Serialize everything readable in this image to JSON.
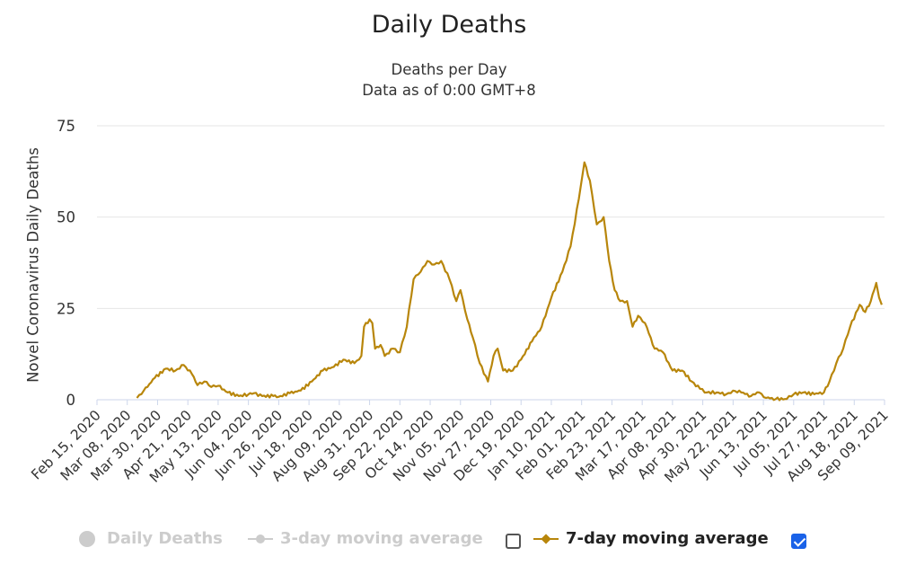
{
  "chart_data": {
    "type": "line",
    "title": "Daily Deaths",
    "subtitle": [
      "Deaths per Day",
      "Data as of 0:00 GMT+8"
    ],
    "ylabel": "Novel Coronavirus Daily Deaths",
    "xlabel": "",
    "ylim": [
      0,
      75
    ],
    "yticks": [
      0,
      25,
      50,
      75
    ],
    "xticks": [
      "Feb 15, 2020",
      "Mar 08, 2020",
      "Mar 30, 2020",
      "Apr 21, 2020",
      "May 13, 2020",
      "Jun 04, 2020",
      "Jun 26, 2020",
      "Jul 18, 2020",
      "Aug 09, 2020",
      "Aug 31, 2020",
      "Sep 22, 2020",
      "Oct 14, 2020",
      "Nov 05, 2020",
      "Nov 27, 2020",
      "Dec 19, 2020",
      "Jan 10, 2021",
      "Feb 01, 2021",
      "Feb 23, 2021",
      "Mar 17, 2021",
      "Apr 08, 2021",
      "Apr 30, 2021",
      "May 22, 2021",
      "Jun 13, 2021",
      "Jul 05, 2021",
      "Jul 27, 2021",
      "Aug 18, 2021",
      "Sep 09, 2021"
    ],
    "grid": true,
    "legend_position": "bottom",
    "series": [
      {
        "name": "7-day moving average",
        "color": "#b8860b",
        "visible": true,
        "points": [
          [
            "2020-03-15",
            0.5
          ],
          [
            "2020-03-20",
            2.5
          ],
          [
            "2020-03-28",
            6
          ],
          [
            "2020-04-05",
            8.5
          ],
          [
            "2020-04-12",
            8
          ],
          [
            "2020-04-18",
            9.5
          ],
          [
            "2020-04-24",
            7
          ],
          [
            "2020-04-28",
            4
          ],
          [
            "2020-05-03",
            5
          ],
          [
            "2020-05-08",
            3.5
          ],
          [
            "2020-05-13",
            3.8
          ],
          [
            "2020-05-20",
            2
          ],
          [
            "2020-05-28",
            1
          ],
          [
            "2020-06-04",
            1.5
          ],
          [
            "2020-06-08",
            1.8
          ],
          [
            "2020-06-14",
            1
          ],
          [
            "2020-06-22",
            1
          ],
          [
            "2020-06-26",
            0.8
          ],
          [
            "2020-07-04",
            1.8
          ],
          [
            "2020-07-12",
            2.5
          ],
          [
            "2020-07-20",
            5
          ],
          [
            "2020-07-28",
            8
          ],
          [
            "2020-08-05",
            9
          ],
          [
            "2020-08-12",
            11
          ],
          [
            "2020-08-20",
            10
          ],
          [
            "2020-08-25",
            12
          ],
          [
            "2020-08-27",
            20
          ],
          [
            "2020-08-31",
            22
          ],
          [
            "2020-09-02",
            21
          ],
          [
            "2020-09-04",
            14
          ],
          [
            "2020-09-08",
            15
          ],
          [
            "2020-09-11",
            12
          ],
          [
            "2020-09-17",
            14
          ],
          [
            "2020-09-22",
            13
          ],
          [
            "2020-09-27",
            20
          ],
          [
            "2020-10-02",
            33
          ],
          [
            "2020-10-07",
            35
          ],
          [
            "2020-10-12",
            38
          ],
          [
            "2020-10-17",
            37
          ],
          [
            "2020-10-22",
            38
          ],
          [
            "2020-10-28",
            33
          ],
          [
            "2020-11-02",
            27
          ],
          [
            "2020-11-05",
            30
          ],
          [
            "2020-11-10",
            22
          ],
          [
            "2020-11-14",
            17
          ],
          [
            "2020-11-19",
            10
          ],
          [
            "2020-11-25",
            5
          ],
          [
            "2020-11-29",
            12
          ],
          [
            "2020-12-02",
            14
          ],
          [
            "2020-12-06",
            8
          ],
          [
            "2020-12-13",
            8
          ],
          [
            "2020-12-19",
            11
          ],
          [
            "2020-12-27",
            16
          ],
          [
            "2021-01-03",
            20
          ],
          [
            "2021-01-10",
            28
          ],
          [
            "2021-01-18",
            35
          ],
          [
            "2021-01-24",
            42
          ],
          [
            "2021-01-30",
            55
          ],
          [
            "2021-02-03",
            65
          ],
          [
            "2021-02-07",
            60
          ],
          [
            "2021-02-12",
            48
          ],
          [
            "2021-02-17",
            50
          ],
          [
            "2021-02-21",
            38
          ],
          [
            "2021-02-25",
            30
          ],
          [
            "2021-03-01",
            27
          ],
          [
            "2021-03-06",
            27
          ],
          [
            "2021-03-10",
            20
          ],
          [
            "2021-03-14",
            23
          ],
          [
            "2021-03-19",
            21
          ],
          [
            "2021-03-26",
            14
          ],
          [
            "2021-04-01",
            13
          ],
          [
            "2021-04-08",
            8
          ],
          [
            "2021-04-15",
            8
          ],
          [
            "2021-04-22",
            5
          ],
          [
            "2021-04-28",
            3
          ],
          [
            "2021-05-03",
            2
          ],
          [
            "2021-05-10",
            2
          ],
          [
            "2021-05-17",
            1.5
          ],
          [
            "2021-05-22",
            2.5
          ],
          [
            "2021-05-28",
            2
          ],
          [
            "2021-06-04",
            1
          ],
          [
            "2021-06-10",
            2
          ],
          [
            "2021-06-15",
            0.5
          ],
          [
            "2021-06-22",
            0.2
          ],
          [
            "2021-06-30",
            0.2
          ],
          [
            "2021-07-05",
            1.5
          ],
          [
            "2021-07-12",
            2
          ],
          [
            "2021-07-20",
            1.5
          ],
          [
            "2021-07-27",
            2
          ],
          [
            "2021-07-31",
            5
          ],
          [
            "2021-08-05",
            10
          ],
          [
            "2021-08-10",
            14
          ],
          [
            "2021-08-15",
            20
          ],
          [
            "2021-08-22",
            26
          ],
          [
            "2021-08-26",
            24
          ],
          [
            "2021-08-30",
            27
          ],
          [
            "2021-09-03",
            32
          ],
          [
            "2021-09-05",
            28
          ],
          [
            "2021-09-07",
            26
          ]
        ]
      }
    ]
  },
  "legend": {
    "daily_deaths": "Daily Deaths",
    "ma3": "3-day moving average",
    "ma7": "7-day moving average",
    "ma3_checked": false,
    "ma7_checked": true,
    "inactive_color": "#cccccc",
    "active_color": "#b8860b",
    "checkbox_color": "#1a62e8"
  }
}
